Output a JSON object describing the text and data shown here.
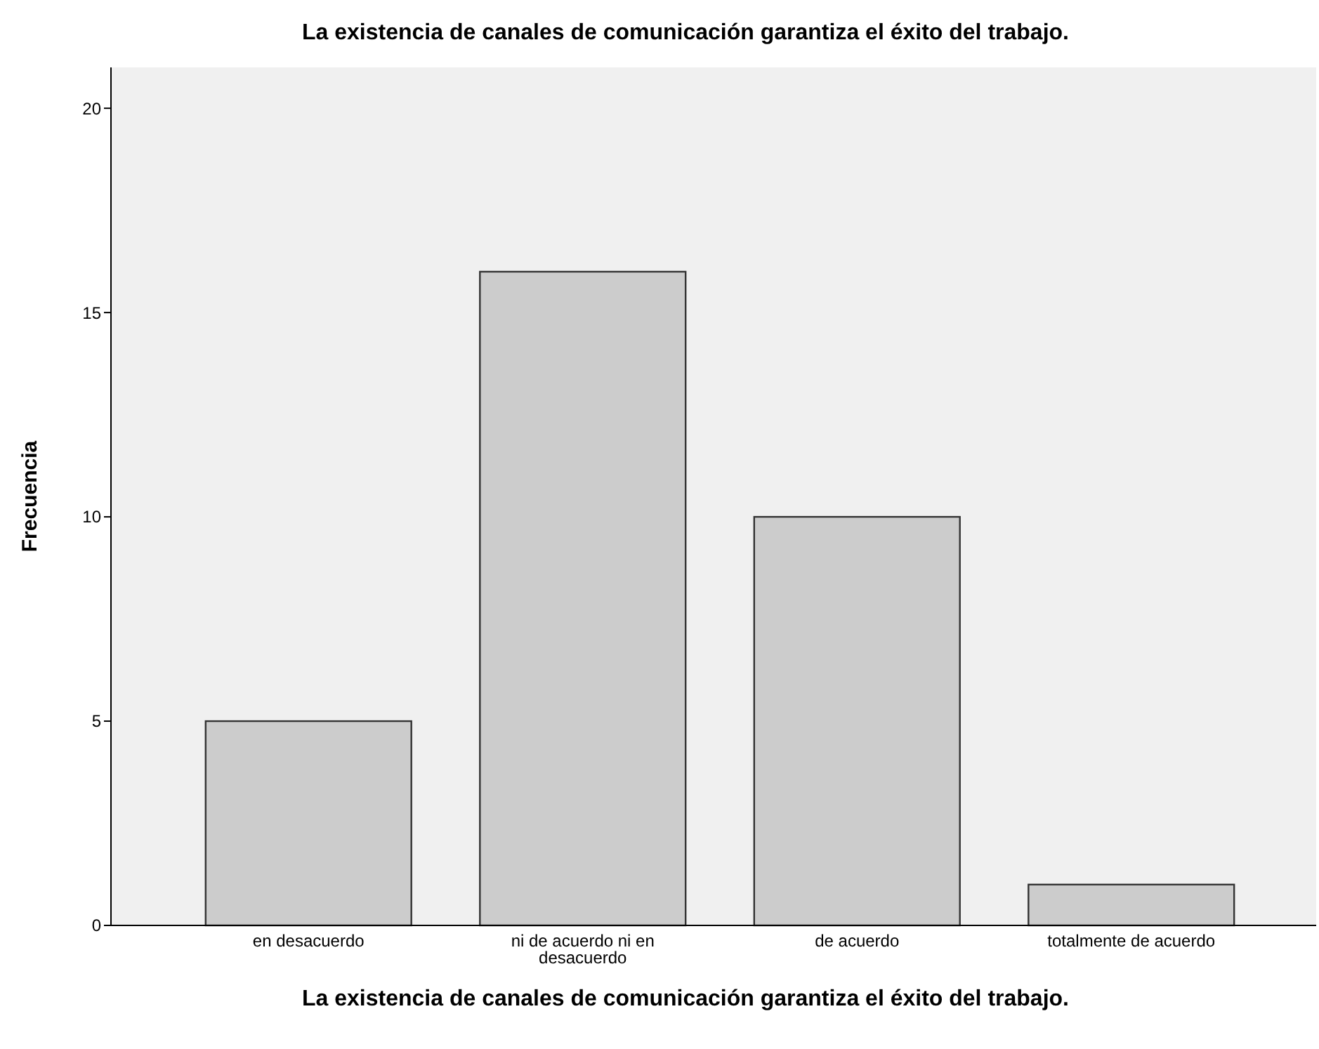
{
  "chart_data": {
    "type": "bar",
    "title": "La existencia de canales de comunicación garantiza el éxito del trabajo.",
    "xlabel": "La existencia de canales de comunicación garantiza el éxito del trabajo.",
    "ylabel": "Frecuencia",
    "categories": [
      "en desacuerdo",
      "ni de acuerdo ni en desacuerdo",
      "de acuerdo",
      "totalmente de acuerdo"
    ],
    "values": [
      5,
      16,
      10,
      1
    ],
    "color": "#cccccc",
    "ylim": [
      0,
      21
    ],
    "yticks": [
      0,
      5,
      10,
      15,
      20
    ],
    "grid": false
  }
}
